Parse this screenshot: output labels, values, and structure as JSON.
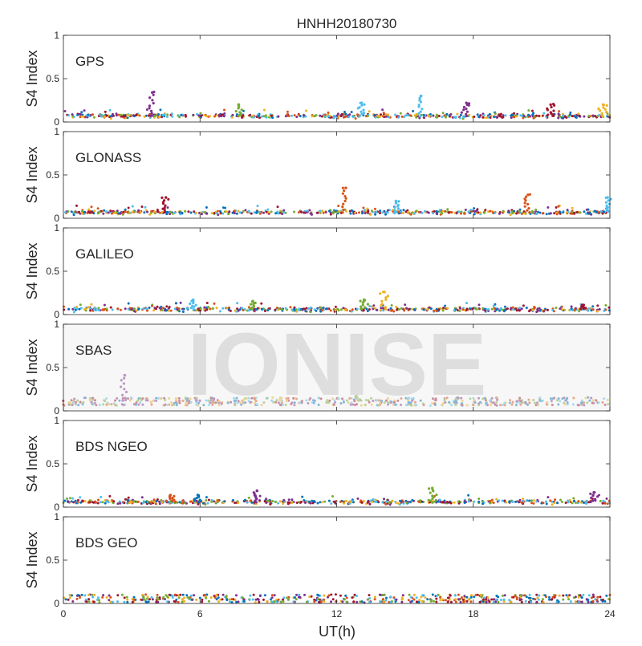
{
  "chart_data": {
    "type": "scatter",
    "title": "HNHH20180730",
    "xlabel": "UT(h)",
    "ylabel": "S4 Index",
    "xlim": [
      0,
      24
    ],
    "xticks": [
      "0",
      "6",
      "12",
      "18",
      "24"
    ],
    "ylim": [
      0,
      1
    ],
    "yticks": [
      "0",
      "0.5",
      "1"
    ],
    "grid": false,
    "watermark": "IONISE",
    "colors": [
      "#0072BD",
      "#D95319",
      "#EDB120",
      "#7E2F8E",
      "#77AC30",
      "#4DBEEE",
      "#A2142F"
    ],
    "panels": [
      {
        "label": "GPS",
        "baseline": 0.07,
        "spikes": [
          {
            "x": 3.9,
            "y": 0.34,
            "color": "#7E2F8E"
          },
          {
            "x": 15.7,
            "y": 0.3,
            "color": "#4DBEEE"
          },
          {
            "x": 13.1,
            "y": 0.22,
            "color": "#4DBEEE"
          },
          {
            "x": 17.7,
            "y": 0.22,
            "color": "#7E2F8E"
          },
          {
            "x": 21.4,
            "y": 0.2,
            "color": "#A2142F"
          },
          {
            "x": 23.7,
            "y": 0.2,
            "color": "#EDB120"
          },
          {
            "x": 7.7,
            "y": 0.2,
            "color": "#77AC30"
          }
        ]
      },
      {
        "label": "GLONASS",
        "baseline": 0.07,
        "spikes": [
          {
            "x": 12.4,
            "y": 0.35,
            "color": "#D95319"
          },
          {
            "x": 4.5,
            "y": 0.24,
            "color": "#A2142F"
          },
          {
            "x": 20.4,
            "y": 0.27,
            "color": "#D95319"
          },
          {
            "x": 23.9,
            "y": 0.24,
            "color": "#4DBEEE"
          },
          {
            "x": 14.6,
            "y": 0.2,
            "color": "#4DBEEE"
          }
        ]
      },
      {
        "label": "GALILEO",
        "baseline": 0.06,
        "spikes": [
          {
            "x": 14.1,
            "y": 0.26,
            "color": "#EDB120"
          },
          {
            "x": 5.7,
            "y": 0.17,
            "color": "#4DBEEE"
          },
          {
            "x": 8.3,
            "y": 0.15,
            "color": "#77AC30"
          },
          {
            "x": 13.2,
            "y": 0.17,
            "color": "#77AC30"
          },
          {
            "x": 22.8,
            "y": 0.11,
            "color": "#A2142F"
          }
        ]
      },
      {
        "label": "SBAS",
        "baseline": 0.12,
        "spikes": [
          {
            "x": 2.7,
            "y": 0.41,
            "color": "#7E2F8E"
          },
          {
            "x": 12.9,
            "y": 0.25,
            "color": "#77AC30"
          }
        ]
      },
      {
        "label": "BDS NGEO",
        "baseline": 0.06,
        "spikes": [
          {
            "x": 16.2,
            "y": 0.22,
            "color": "#77AC30"
          },
          {
            "x": 8.5,
            "y": 0.19,
            "color": "#7E2F8E"
          },
          {
            "x": 23.3,
            "y": 0.17,
            "color": "#7E2F8E"
          },
          {
            "x": 5.9,
            "y": 0.14,
            "color": "#0072BD"
          },
          {
            "x": 4.7,
            "y": 0.14,
            "color": "#D95319"
          }
        ]
      },
      {
        "label": "BDS GEO",
        "baseline": 0.07,
        "spikes": []
      }
    ]
  }
}
